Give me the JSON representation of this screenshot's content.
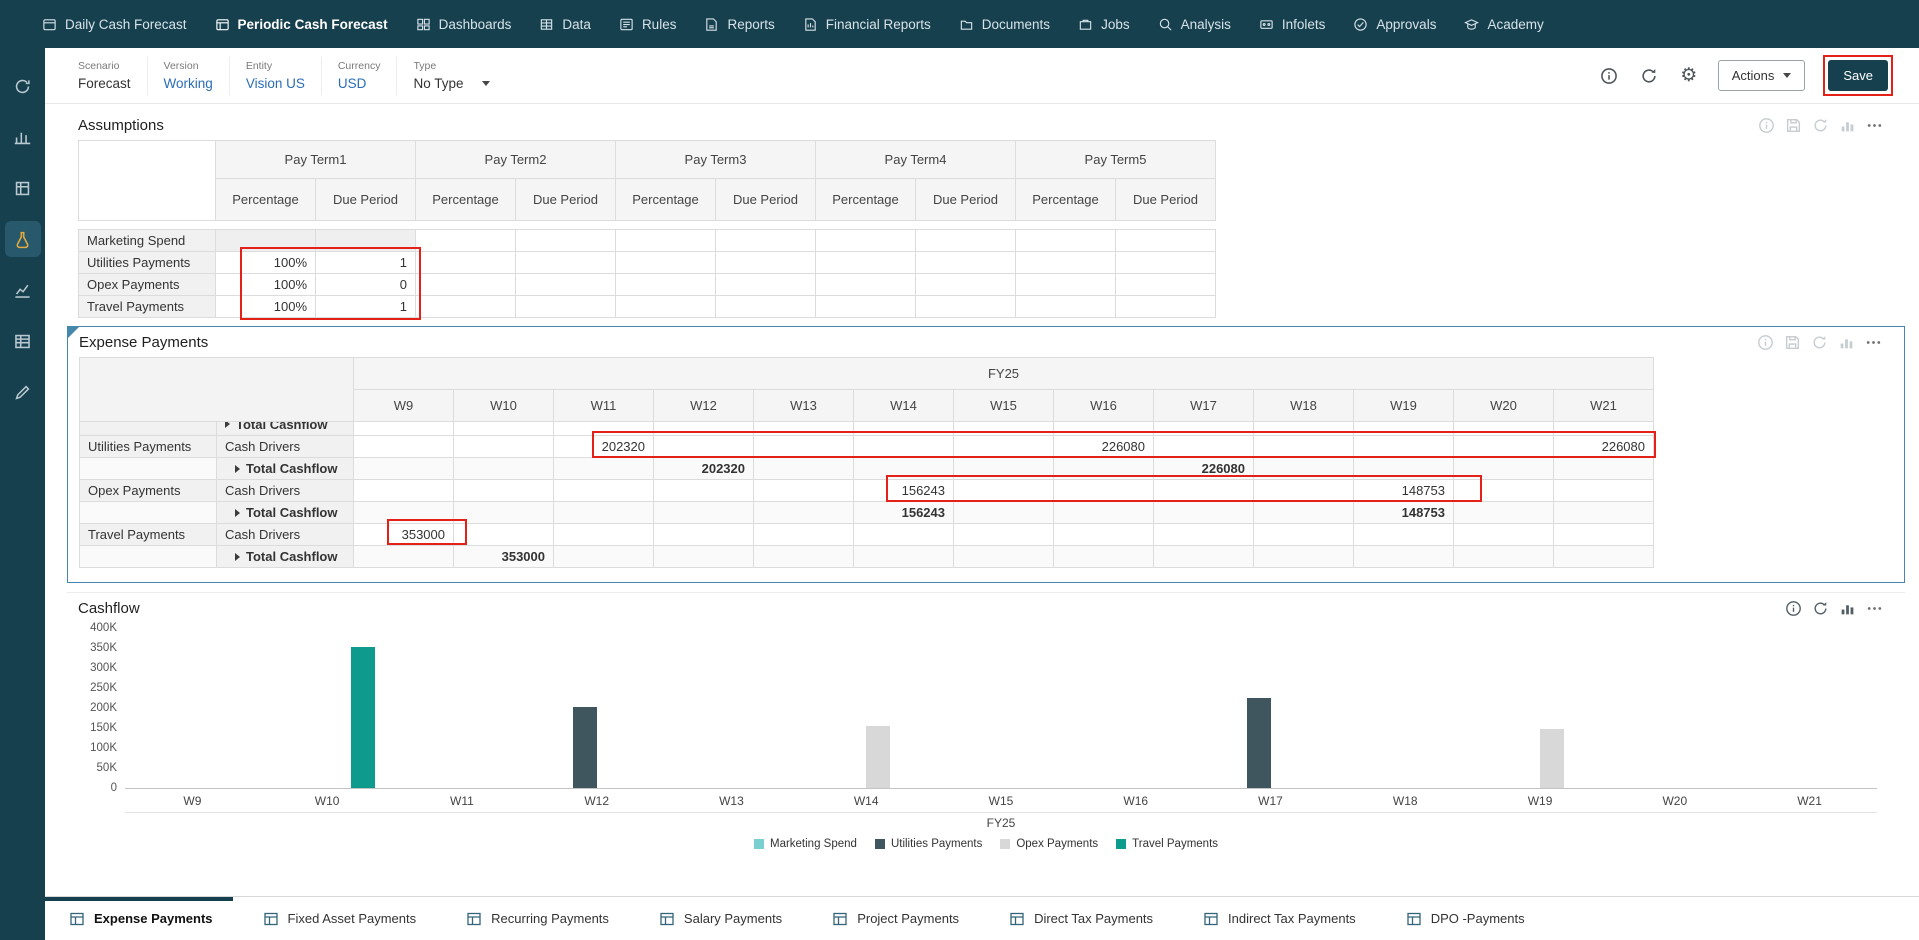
{
  "topnav": {
    "items": [
      {
        "label": "Daily Cash Forecast"
      },
      {
        "label": "Periodic Cash Forecast"
      },
      {
        "label": "Dashboards"
      },
      {
        "label": "Data"
      },
      {
        "label": "Rules"
      },
      {
        "label": "Reports"
      },
      {
        "label": "Financial Reports"
      },
      {
        "label": "Documents"
      },
      {
        "label": "Jobs"
      },
      {
        "label": "Analysis"
      },
      {
        "label": "Infolets"
      },
      {
        "label": "Approvals"
      },
      {
        "label": "Academy"
      }
    ],
    "active": "Periodic Cash Forecast"
  },
  "pov": {
    "fields": [
      {
        "label": "Scenario",
        "value": "Forecast"
      },
      {
        "label": "Version",
        "value": "Working"
      },
      {
        "label": "Entity",
        "value": "Vision US"
      },
      {
        "label": "Currency",
        "value": "USD"
      },
      {
        "label": "Type",
        "value": "No Type"
      }
    ],
    "actions_label": "Actions",
    "save_label": "Save"
  },
  "assumptions": {
    "title": "Assumptions",
    "groups": [
      "Pay Term1",
      "Pay Term2",
      "Pay Term3",
      "Pay Term4",
      "Pay Term5"
    ],
    "subcols": {
      "percentage": "Percentage",
      "due_period": "Due Period"
    },
    "rows": [
      {
        "label": "Marketing Spend",
        "percentage": "",
        "due_period": ""
      },
      {
        "label": "Utilities Payments",
        "percentage": "100%",
        "due_period": "1"
      },
      {
        "label": "Opex Payments",
        "percentage": "100%",
        "due_period": "0"
      },
      {
        "label": "Travel Payments",
        "percentage": "100%",
        "due_period": "1"
      }
    ]
  },
  "expense": {
    "title": "Expense Payments",
    "year": "FY25",
    "weeks": [
      "W9",
      "W10",
      "W11",
      "W12",
      "W13",
      "W14",
      "W15",
      "W16",
      "W17",
      "W18",
      "W19",
      "W20",
      "W21"
    ],
    "rows": [
      {
        "kind": "clipped",
        "col2": "Total Cashflow"
      },
      {
        "label": "Utilities Payments",
        "col2": "Cash Drivers",
        "values": {
          "W11": "202320",
          "W16": "226080",
          "W21": "226080"
        }
      },
      {
        "label": "",
        "col2": "Total Cashflow",
        "values": {
          "W12": "202320",
          "W17": "226080"
        }
      },
      {
        "label": "Opex Payments",
        "col2": "Cash Drivers",
        "values": {
          "W14": "156243",
          "W19": "148753"
        }
      },
      {
        "label": "",
        "col2": "Total Cashflow",
        "values": {
          "W14": "156243",
          "W19": "148753"
        }
      },
      {
        "label": "Travel Payments",
        "col2": "Cash Drivers",
        "values": {
          "W9": "353000"
        }
      },
      {
        "label": "",
        "col2": "Total Cashflow",
        "values": {
          "W10": "353000"
        }
      }
    ]
  },
  "chart_data": {
    "type": "bar",
    "title": "Cashflow",
    "categories": [
      "W9",
      "W10",
      "W11",
      "W12",
      "W13",
      "W14",
      "W15",
      "W16",
      "W17",
      "W18",
      "W19",
      "W20",
      "W21"
    ],
    "xlabel": "FY25",
    "ylabel": "",
    "ylim": [
      0,
      400000
    ],
    "yticks": [
      "400K",
      "350K",
      "300K",
      "250K",
      "200K",
      "150K",
      "100K",
      "50K",
      "0"
    ],
    "grid": false,
    "legend_position": "bottom",
    "series": [
      {
        "name": "Marketing Spend",
        "color": "#7bcfd1",
        "values": [
          0,
          0,
          0,
          0,
          0,
          0,
          0,
          0,
          0,
          0,
          0,
          0,
          0
        ]
      },
      {
        "name": "Utilities Payments",
        "color": "#3f565e",
        "values": [
          0,
          0,
          0,
          202320,
          0,
          0,
          0,
          0,
          226080,
          0,
          0,
          0,
          0
        ]
      },
      {
        "name": "Opex Payments",
        "color": "#d8d8d8",
        "values": [
          0,
          0,
          0,
          0,
          0,
          156243,
          0,
          0,
          0,
          0,
          148753,
          0,
          0
        ]
      },
      {
        "name": "Travel Payments",
        "color": "#0f9a8e",
        "values": [
          0,
          353000,
          0,
          0,
          0,
          0,
          0,
          0,
          0,
          0,
          0,
          0,
          0
        ]
      }
    ]
  },
  "tabs": {
    "items": [
      {
        "label": "Expense Payments"
      },
      {
        "label": "Fixed Asset Payments"
      },
      {
        "label": "Recurring Payments"
      },
      {
        "label": "Salary Payments"
      },
      {
        "label": "Project Payments"
      },
      {
        "label": "Direct Tax Payments"
      },
      {
        "label": "Indirect Tax Payments"
      },
      {
        "label": "DPO -Payments"
      }
    ],
    "active": "Expense Payments"
  },
  "colors": {
    "navy": "#17404f",
    "accent_blue": "#2a6db5",
    "annotation_red": "#e32119",
    "selected_panel_border": "#4687ad"
  }
}
